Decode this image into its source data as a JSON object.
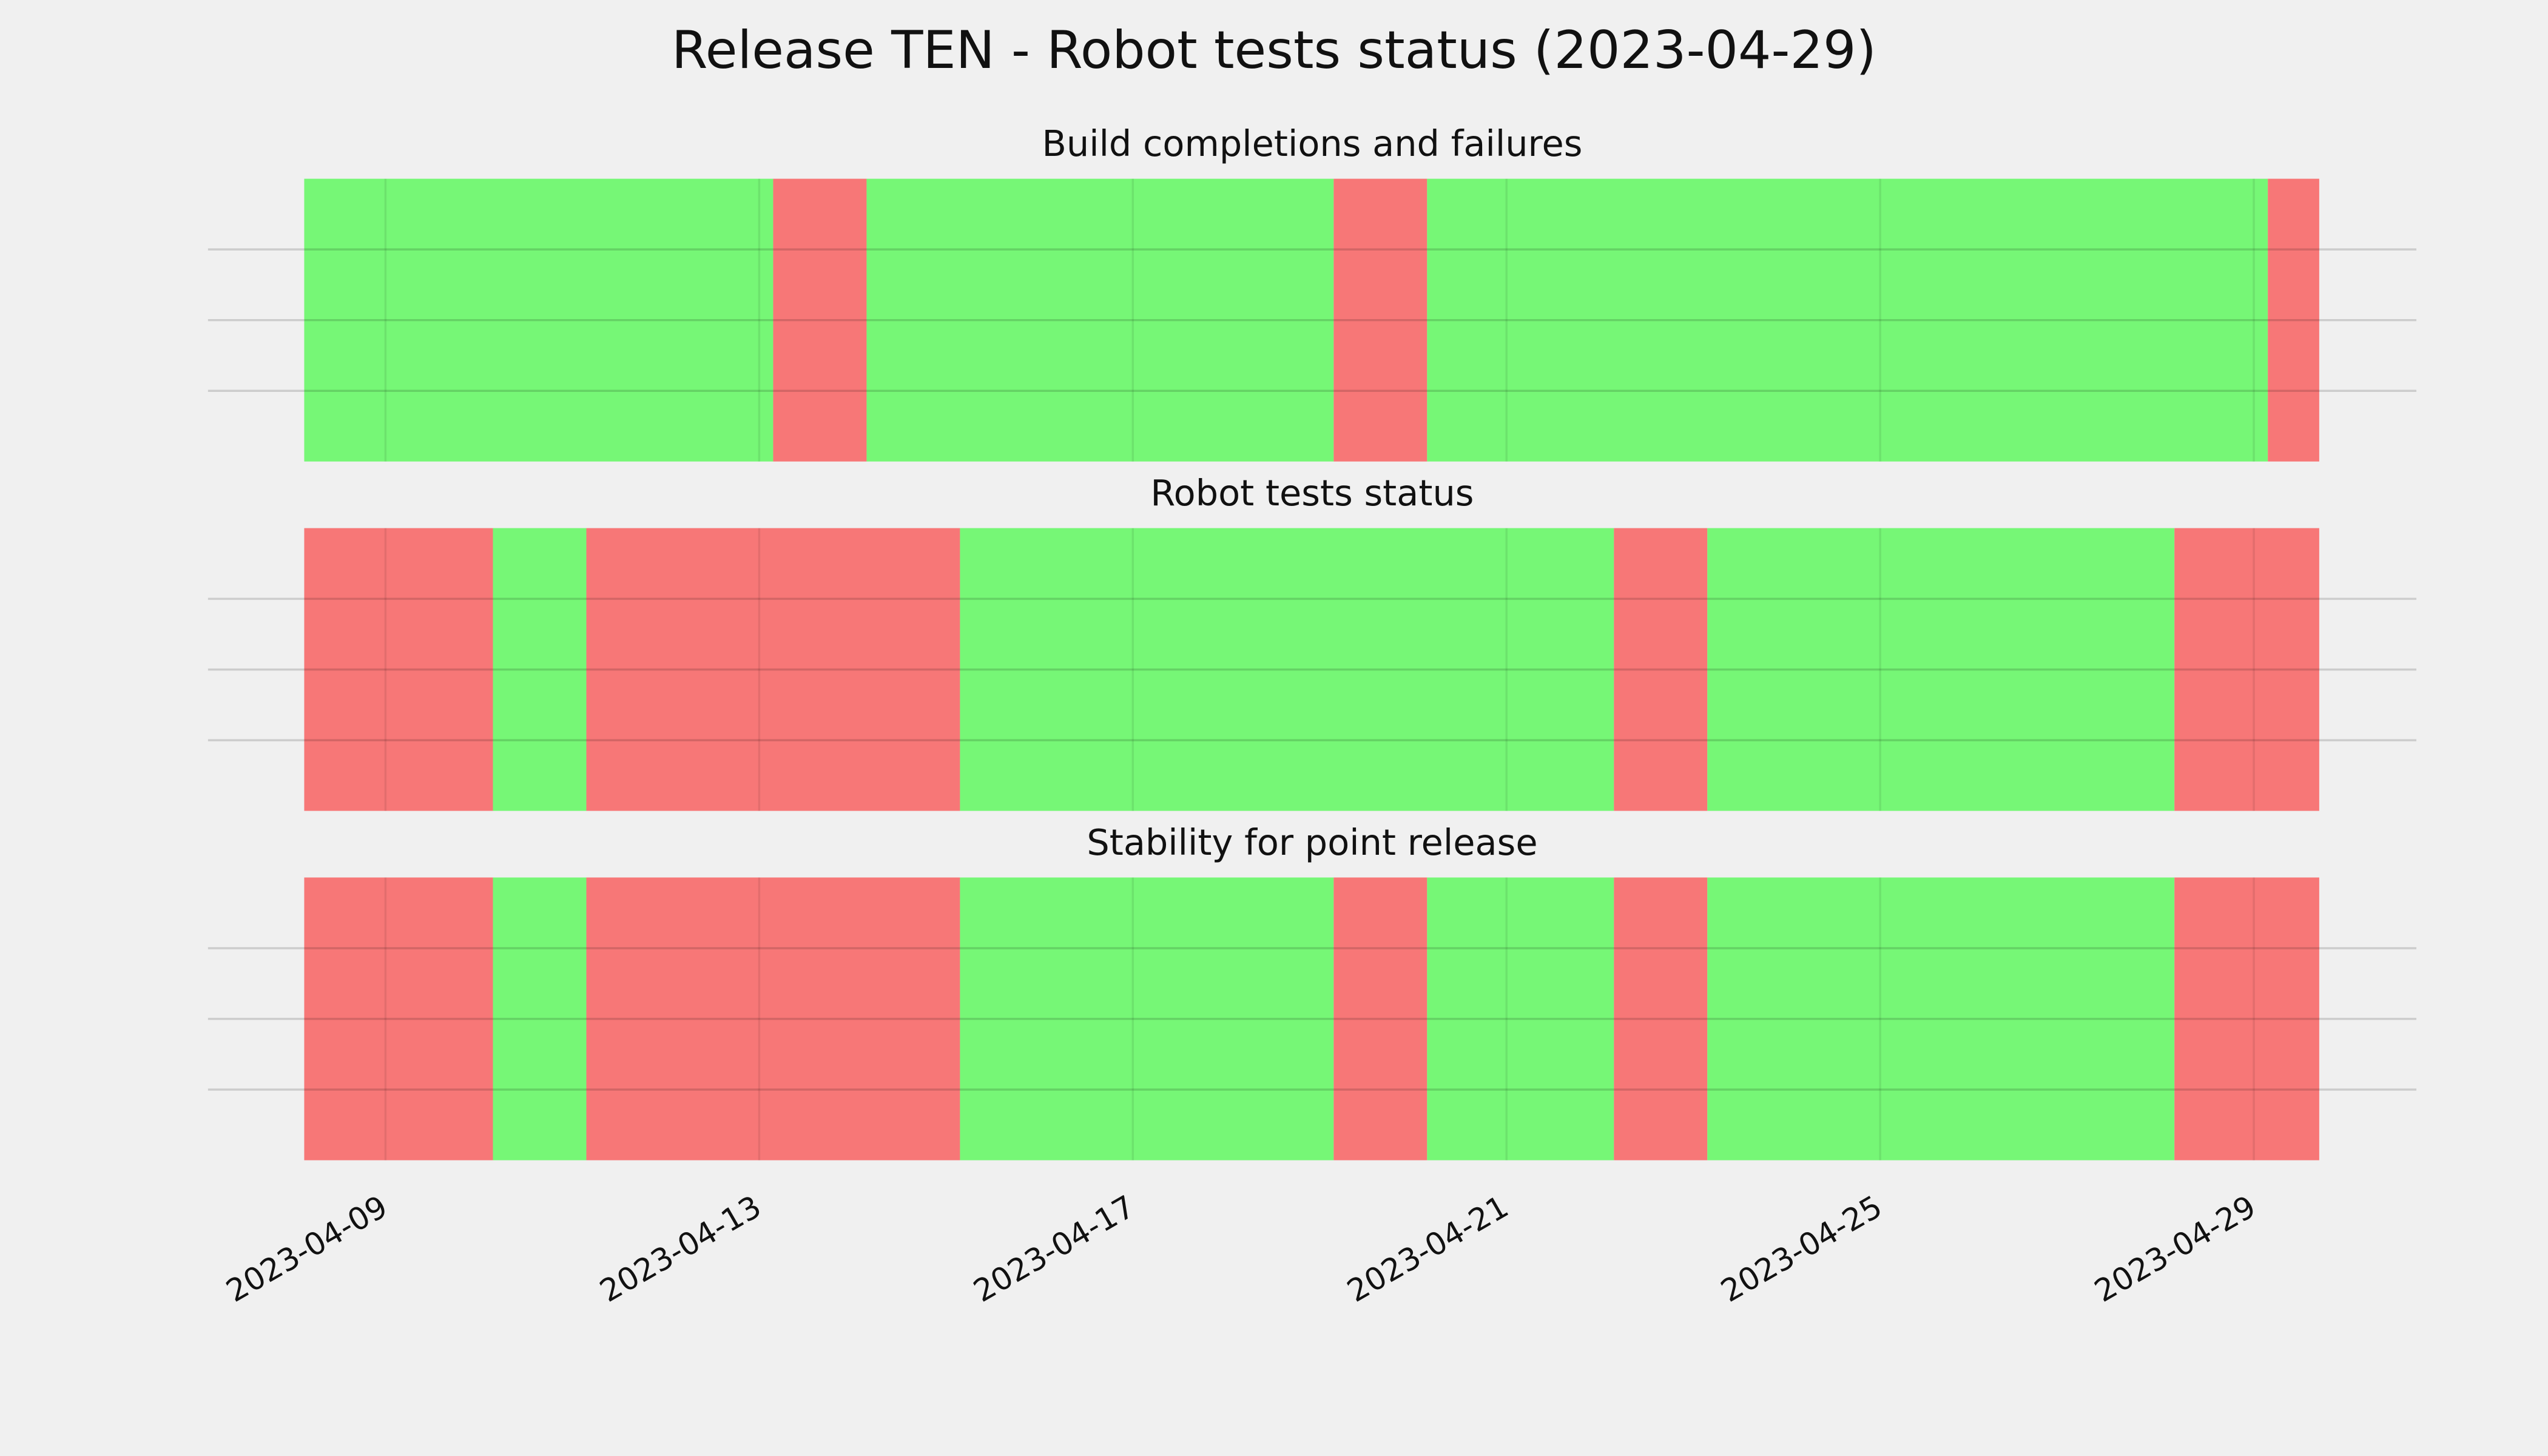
{
  "title": "Release TEN - Robot tests status (2023-04-29)",
  "xlim": [
    7.1,
    30.74
  ],
  "xticks": [
    {
      "value": 9,
      "label": "2023-04-09"
    },
    {
      "value": 13,
      "label": "2023-04-13"
    },
    {
      "value": 17,
      "label": "2023-04-17"
    },
    {
      "value": 21,
      "label": "2023-04-21"
    },
    {
      "value": 25,
      "label": "2023-04-25"
    },
    {
      "value": 29,
      "label": "2023-04-29"
    }
  ],
  "chart_data": [
    {
      "type": "timeline",
      "title": "Build completions and failures",
      "starts": [
        8.13,
        13.15,
        14.15,
        19.15,
        20.15,
        29.15
      ],
      "ends": [
        13.15,
        14.15,
        19.15,
        20.15,
        29.15,
        29.7
      ],
      "colors": [
        "#76f776",
        "#f77777",
        "#76f776",
        "#f77777",
        "#76f776",
        "#f77777"
      ],
      "ylim": [
        0,
        1
      ],
      "yticks": [
        0.25,
        0.5,
        0.75
      ],
      "grid": true
    },
    {
      "type": "timeline",
      "title": "Robot tests status",
      "starts": [
        8.13,
        10.15,
        11.15,
        15.15,
        22.15,
        23.15,
        28.15
      ],
      "ends": [
        10.15,
        11.15,
        15.15,
        22.15,
        23.15,
        28.15,
        29.7
      ],
      "colors": [
        "#f77777",
        "#76f776",
        "#f77777",
        "#76f776",
        "#f77777",
        "#76f776",
        "#f77777"
      ],
      "ylim": [
        0,
        1
      ],
      "yticks": [
        0.25,
        0.5,
        0.75
      ],
      "grid": true
    },
    {
      "type": "timeline",
      "title": "Stability for point release",
      "starts": [
        8.13,
        10.15,
        11.15,
        15.15,
        19.15,
        20.15,
        22.15,
        23.15,
        28.15
      ],
      "ends": [
        10.15,
        11.15,
        15.15,
        19.15,
        20.15,
        22.15,
        23.15,
        28.15,
        29.7
      ],
      "colors": [
        "#f77777",
        "#76f776",
        "#f77777",
        "#76f776",
        "#f77777",
        "#76f776",
        "#f77777",
        "#76f776",
        "#f77777"
      ],
      "ylim": [
        0,
        1
      ],
      "yticks": [
        0.25,
        0.5,
        0.75
      ],
      "grid": true
    }
  ]
}
